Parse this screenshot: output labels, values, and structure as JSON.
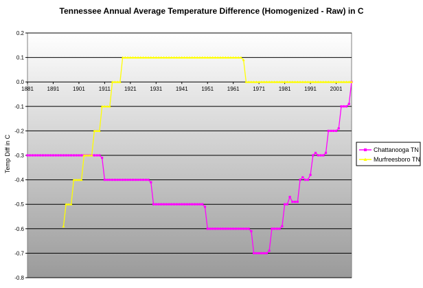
{
  "chart_data": {
    "type": "line",
    "title": "Tennessee Annual Average Temperature Difference (Homogenized - Raw) in C",
    "xlabel": "",
    "ylabel": "Temp Diff in C",
    "xlim": [
      1881,
      2006
    ],
    "ylim": [
      -0.8,
      0.2
    ],
    "y_ticks": [
      "0.2",
      "0.1",
      "0.0",
      "-0.1",
      "-0.2",
      "-0.3",
      "-0.4",
      "-0.5",
      "-0.6",
      "-0.7",
      "-0.8"
    ],
    "x_ticks": [
      "1881",
      "1891",
      "1901",
      "1911",
      "1921",
      "1931",
      "1941",
      "1951",
      "1961",
      "1971",
      "1981",
      "1991",
      "2001"
    ],
    "grid": "horizontal",
    "legend_position": "right",
    "series": [
      {
        "name": "Chattanooga TN",
        "color": "#ff00ff",
        "marker": "square",
        "segments": [
          {
            "from": 1881,
            "to": 1907,
            "value": -0.3
          },
          {
            "from": 1908,
            "to": 1909,
            "value": -0.3
          },
          {
            "from": 1910,
            "to": 1910,
            "value": -0.31
          },
          {
            "from": 1911,
            "to": 1928,
            "value": -0.4
          },
          {
            "from": 1929,
            "to": 1929,
            "value": -0.41
          },
          {
            "from": 1930,
            "to": 1949,
            "value": -0.5
          },
          {
            "from": 1950,
            "to": 1950,
            "value": -0.51
          },
          {
            "from": 1951,
            "to": 1967,
            "value": -0.6
          },
          {
            "from": 1968,
            "to": 1968,
            "value": -0.61
          },
          {
            "from": 1969,
            "to": 1974,
            "value": -0.7
          },
          {
            "from": 1975,
            "to": 1975,
            "value": -0.69
          },
          {
            "from": 1976,
            "to": 1979,
            "value": -0.6
          },
          {
            "from": 1980,
            "to": 1980,
            "value": -0.59
          },
          {
            "from": 1981,
            "to": 1982,
            "value": -0.5
          },
          {
            "from": 1983,
            "to": 1983,
            "value": -0.47
          },
          {
            "from": 1984,
            "to": 1985,
            "value": -0.49
          },
          {
            "from": 1986,
            "to": 1986,
            "value": -0.49
          },
          {
            "from": 1987,
            "to": 1987,
            "value": -0.4
          },
          {
            "from": 1988,
            "to": 1988,
            "value": -0.39
          },
          {
            "from": 1989,
            "to": 1990,
            "value": -0.4
          },
          {
            "from": 1991,
            "to": 1991,
            "value": -0.38
          },
          {
            "from": 1992,
            "to": 1992,
            "value": -0.3
          },
          {
            "from": 1993,
            "to": 1993,
            "value": -0.29
          },
          {
            "from": 1994,
            "to": 1996,
            "value": -0.3
          },
          {
            "from": 1997,
            "to": 1997,
            "value": -0.29
          },
          {
            "from": 1998,
            "to": 1998,
            "value": -0.2
          },
          {
            "from": 1999,
            "to": 2001,
            "value": -0.2
          },
          {
            "from": 2002,
            "to": 2002,
            "value": -0.19
          },
          {
            "from": 2003,
            "to": 2005,
            "value": -0.1
          },
          {
            "from": 2006,
            "to": 2006,
            "value": -0.09
          },
          {
            "from": 2007,
            "to": 2007,
            "value": 0.0
          }
        ]
      },
      {
        "name": "Murfreesboro TN",
        "color": "#ffff00",
        "marker": "triangle",
        "segments": [
          {
            "from": 1895,
            "to": 1895,
            "value": -0.59
          },
          {
            "from": 1896,
            "to": 1896,
            "value": -0.5
          },
          {
            "from": 1897,
            "to": 1898,
            "value": -0.5
          },
          {
            "from": 1899,
            "to": 1899,
            "value": -0.4
          },
          {
            "from": 1900,
            "to": 1902,
            "value": -0.4
          },
          {
            "from": 1903,
            "to": 1903,
            "value": -0.3
          },
          {
            "from": 1904,
            "to": 1906,
            "value": -0.3
          },
          {
            "from": 1907,
            "to": 1907,
            "value": -0.2
          },
          {
            "from": 1908,
            "to": 1909,
            "value": -0.2
          },
          {
            "from": 1910,
            "to": 1910,
            "value": -0.1
          },
          {
            "from": 1911,
            "to": 1913,
            "value": -0.1
          },
          {
            "from": 1914,
            "to": 1914,
            "value": 0.0
          },
          {
            "from": 1915,
            "to": 1917,
            "value": 0.0
          },
          {
            "from": 1918,
            "to": 1918,
            "value": 0.1
          },
          {
            "from": 1919,
            "to": 1964,
            "value": 0.1
          },
          {
            "from": 1965,
            "to": 1965,
            "value": 0.09
          },
          {
            "from": 1966,
            "to": 1966,
            "value": 0.0
          },
          {
            "from": 1967,
            "to": 2007,
            "value": 0.0
          }
        ]
      }
    ]
  }
}
